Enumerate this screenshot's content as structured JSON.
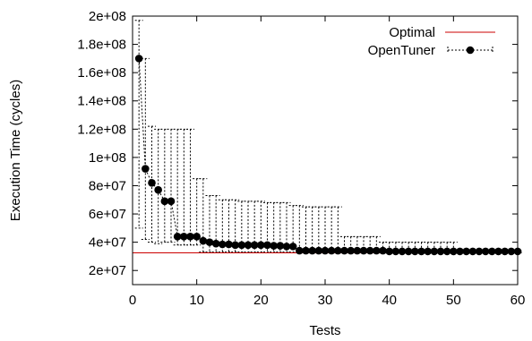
{
  "chart_data": {
    "type": "line",
    "title": "",
    "xlabel": "Tests",
    "ylabel": "Execution Time (cycles)",
    "xlim": [
      0,
      60
    ],
    "ylim": [
      10000000,
      200000000
    ],
    "x_ticks": [
      0,
      10,
      20,
      30,
      40,
      50,
      60
    ],
    "y_ticks": [
      20000000,
      40000000,
      60000000,
      80000000,
      100000000,
      120000000,
      140000000,
      160000000,
      180000000,
      200000000
    ],
    "x_tick_labels": [
      "0",
      "10",
      "20",
      "30",
      "40",
      "50",
      "60"
    ],
    "y_tick_labels": [
      "2e+07",
      "4e+07",
      "6e+07",
      "8e+07",
      "1e+08",
      "1.2e+08",
      "1.4e+08",
      "1.6e+08",
      "1.8e+08",
      "2e+08"
    ],
    "grid": false,
    "legend_position": "top-right",
    "series": [
      {
        "name": "Optimal",
        "color": "#cc0000",
        "style": "solid",
        "x": [
          0,
          60
        ],
        "y": [
          32500000,
          32500000
        ]
      },
      {
        "name": "OpenTuner",
        "color": "#000000",
        "style": "dotted-with-markers",
        "x": [
          1,
          2,
          3,
          4,
          5,
          6,
          7,
          8,
          9,
          10,
          11,
          12,
          13,
          14,
          15,
          16,
          17,
          18,
          19,
          20,
          21,
          22,
          23,
          24,
          25,
          26,
          27,
          28,
          29,
          30,
          31,
          32,
          33,
          34,
          35,
          36,
          37,
          38,
          39,
          40,
          41,
          42,
          43,
          44,
          45,
          46,
          47,
          48,
          49,
          50,
          51,
          52,
          53,
          54,
          55,
          56,
          57,
          58,
          59,
          60
        ],
        "y": [
          170000000,
          92000000,
          82000000,
          77000000,
          69000000,
          69000000,
          44000000,
          44000000,
          44000000,
          44000000,
          41000000,
          40000000,
          39000000,
          38500000,
          38500000,
          38000000,
          38000000,
          38000000,
          38000000,
          38000000,
          38000000,
          37500000,
          37500000,
          37000000,
          37000000,
          34000000,
          34000000,
          34000000,
          34000000,
          34000000,
          34000000,
          34000000,
          34000000,
          34000000,
          34000000,
          34000000,
          34000000,
          34000000,
          34000000,
          33500000,
          33500000,
          33500000,
          33500000,
          33500000,
          33500000,
          33500000,
          33500000,
          33500000,
          33500000,
          33500000,
          33500000,
          33500000,
          33500000,
          33500000,
          33500000,
          33500000,
          33500000,
          33500000,
          33500000,
          33500000
        ],
        "error_low": [
          50000000,
          42000000,
          40000000,
          39000000,
          40000000,
          40000000,
          38000000,
          38000000,
          38000000,
          38000000,
          33000000,
          33000000,
          33000000,
          33000000,
          33000000,
          33000000,
          33000000,
          33000000,
          33000000,
          33000000,
          33000000,
          33000000,
          33000000,
          33000000,
          33000000,
          32500000,
          32500000,
          32500000,
          32500000,
          32500000,
          32500000,
          32500000,
          32500000,
          32500000,
          32500000,
          32500000,
          32500000,
          32500000,
          32500000,
          32500000,
          32500000,
          32500000,
          32500000,
          32500000,
          32500000,
          32500000,
          32500000,
          32500000,
          32500000,
          32500000,
          32500000,
          32500000,
          32500000,
          32500000,
          32500000,
          32500000,
          32500000,
          32500000,
          32500000,
          32500000
        ],
        "error_high": [
          197000000,
          170000000,
          122000000,
          120000000,
          120000000,
          120000000,
          120000000,
          120000000,
          120000000,
          85000000,
          85000000,
          73000000,
          73000000,
          70000000,
          70000000,
          70000000,
          69000000,
          69000000,
          69000000,
          69000000,
          68000000,
          68000000,
          68000000,
          68000000,
          66000000,
          66000000,
          65000000,
          65000000,
          65000000,
          65000000,
          65000000,
          65000000,
          44000000,
          44000000,
          44000000,
          44000000,
          44000000,
          44000000,
          40000000,
          40000000,
          40000000,
          40000000,
          40000000,
          40000000,
          40000000,
          40000000,
          40000000,
          40000000,
          40000000,
          40000000,
          33500000,
          33500000,
          33500000,
          33500000,
          33500000,
          33500000,
          33500000,
          33500000,
          33500000,
          33500000
        ]
      }
    ]
  }
}
